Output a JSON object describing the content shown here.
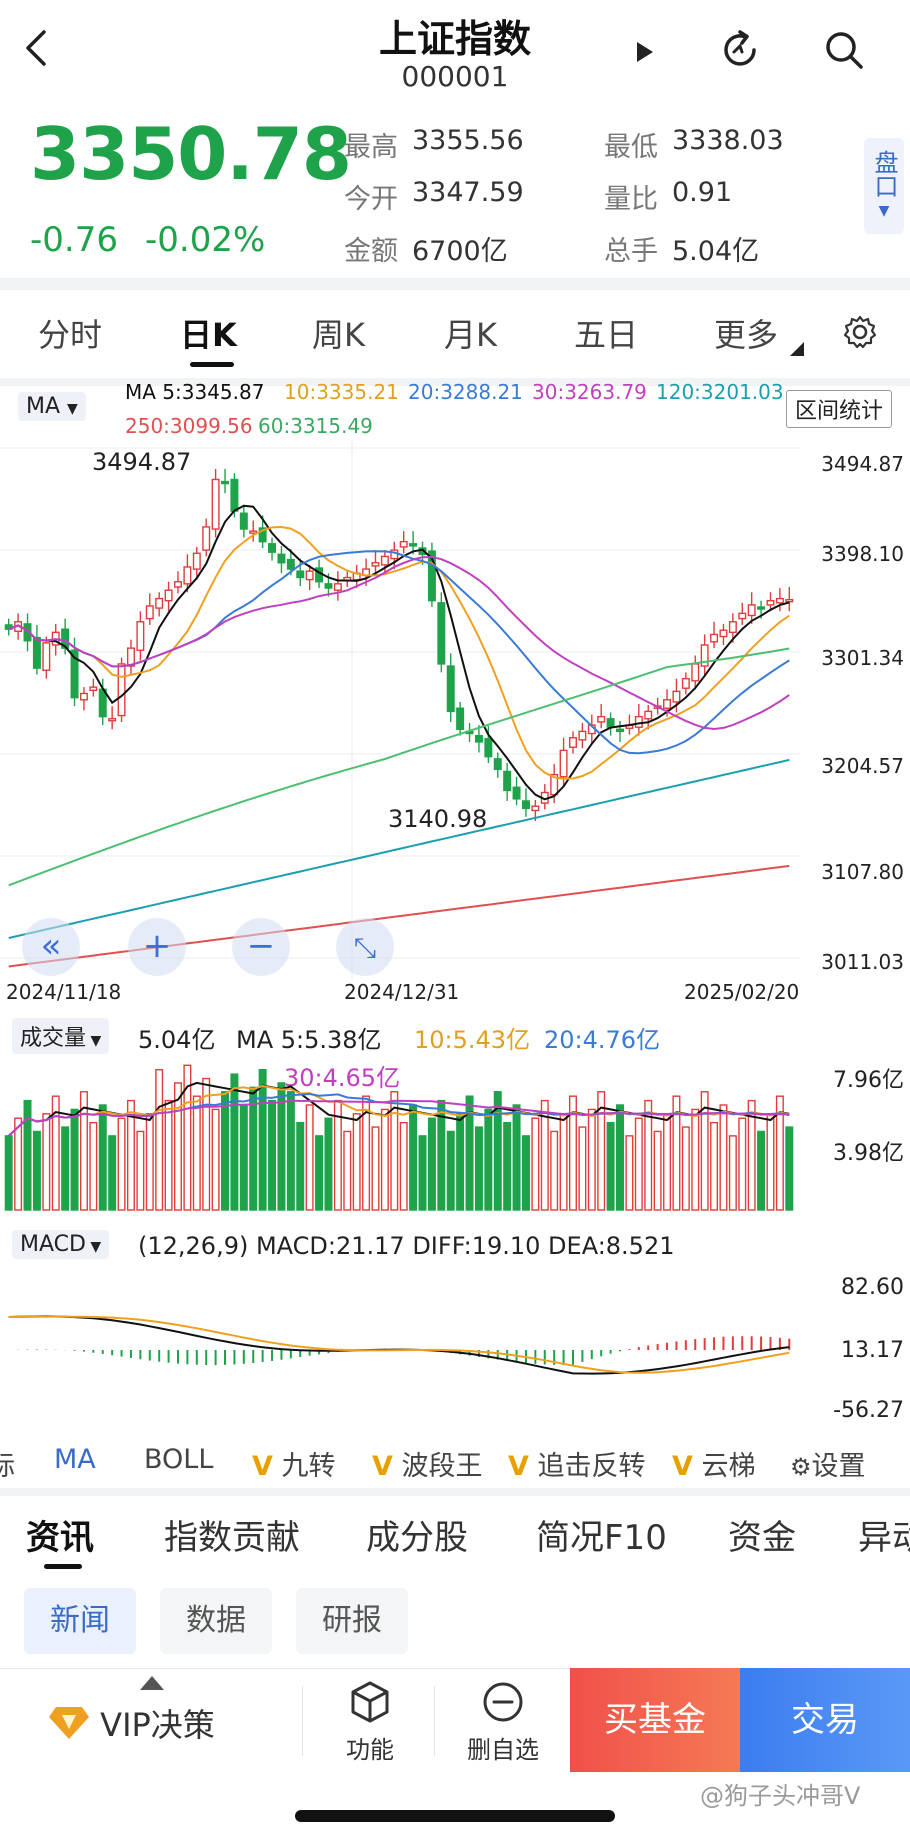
{
  "header": {
    "title": "上证指数",
    "code": "000001"
  },
  "quote": {
    "price": "3350.78",
    "change": "-0.76",
    "change_pct": "-0.02%",
    "stats": [
      {
        "label": "最高",
        "value": "3355.56"
      },
      {
        "label": "最低",
        "value": "3338.03"
      },
      {
        "label": "今开",
        "value": "3347.59"
      },
      {
        "label": "量比",
        "value": "0.91"
      },
      {
        "label": "金额",
        "value": "6700亿"
      },
      {
        "label": "总手",
        "value": "5.04亿"
      }
    ],
    "pankou": "盘口"
  },
  "period_tabs": [
    "分时",
    "日K",
    "周K",
    "月K",
    "五日",
    "更多"
  ],
  "kline": {
    "ma_selector": "MA",
    "ma_values": {
      "ma5": "MA  5:3345.87",
      "ma10": "10:3335.21",
      "ma20": "20:3288.21",
      "ma30": "30:3263.79",
      "ma120": "120:3201.03",
      "ma250": "250:3099.56",
      "ma60": "60:3315.49"
    },
    "range_stat": "区间统计",
    "high_marker": "3494.87",
    "low_marker": "3140.98",
    "y_axis": [
      "3494.87",
      "3398.10",
      "3301.34",
      "3204.57",
      "3107.80",
      "3011.03"
    ],
    "dates": [
      "2024/11/18",
      "2024/12/31",
      "2025/02/20"
    ],
    "colors": {
      "up": "#e03c3c",
      "down": "#1fa34a",
      "ma5": "#111111",
      "ma10": "#f0a020",
      "ma20": "#3a7bd5",
      "ma30": "#c040c0",
      "ma60": "#4cbf70",
      "ma120": "#1a9fb0",
      "ma250": "#e05050"
    }
  },
  "volume": {
    "selector": "成交量",
    "current": "5.04亿",
    "ma5": "MA  5:5.38亿",
    "ma10": "10:5.43亿",
    "ma20": "20:4.76亿",
    "ma30": "30:4.65亿",
    "y_axis": [
      "7.96亿",
      "3.98亿"
    ]
  },
  "macd": {
    "selector": "MACD",
    "params": "(12,26,9) MACD:21.17 DIFF:19.10 DEA:8.521",
    "y_axis": [
      "82.60",
      "13.17",
      "-56.27"
    ]
  },
  "indicators": {
    "partial": "标",
    "items": [
      "MA",
      "BOLL",
      "九转",
      "波段王",
      "追击反转",
      "云梯"
    ],
    "settings": "设置"
  },
  "info_tabs": [
    "资讯",
    "指数贡献",
    "成分股",
    "简况F10",
    "资金",
    "异动"
  ],
  "sub_tabs": [
    "新闻",
    "数据",
    "研报"
  ],
  "bottom_bar": {
    "vip": "VIP决策",
    "function": "功能",
    "remove_watch": "删自选",
    "buy_fund": "买基金",
    "trade": "交易"
  },
  "watermark": "@狗子头冲哥V",
  "chart_data": {
    "type": "candlestick",
    "dates": [
      "2024/11/18",
      "2024/12/31",
      "2025/02/20"
    ],
    "y_range": [
      3011.03,
      3494.87
    ],
    "period_high": 3494.87,
    "period_low": 3140.98,
    "last_close": 3350.78
  }
}
